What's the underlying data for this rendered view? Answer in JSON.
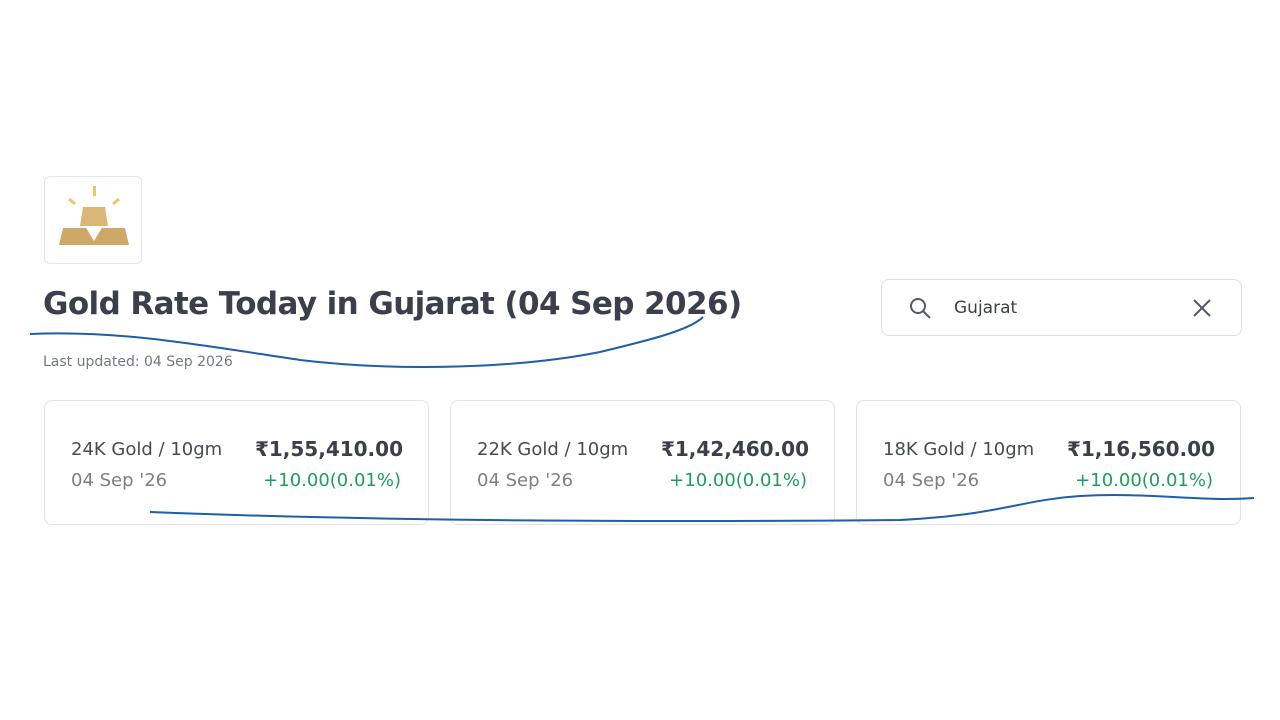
{
  "header": {
    "title": "Gold Rate Today in Gujarat (04 Sep 2026)",
    "last_updated": "Last updated: 04 Sep 2026"
  },
  "search": {
    "query": "Gujarat"
  },
  "cards": [
    {
      "label": "24K Gold / 10gm",
      "date": "04 Sep '26",
      "price": "₹1,55,410.00",
      "change": "+10.00(0.01%)"
    },
    {
      "label": "22K Gold / 10gm",
      "date": "04 Sep '26",
      "price": "₹1,42,460.00",
      "change": "+10.00(0.01%)"
    },
    {
      "label": "18K Gold / 10gm",
      "date": "04 Sep '26",
      "price": "₹1,16,560.00",
      "change": "+10.00(0.01%)"
    }
  ]
}
